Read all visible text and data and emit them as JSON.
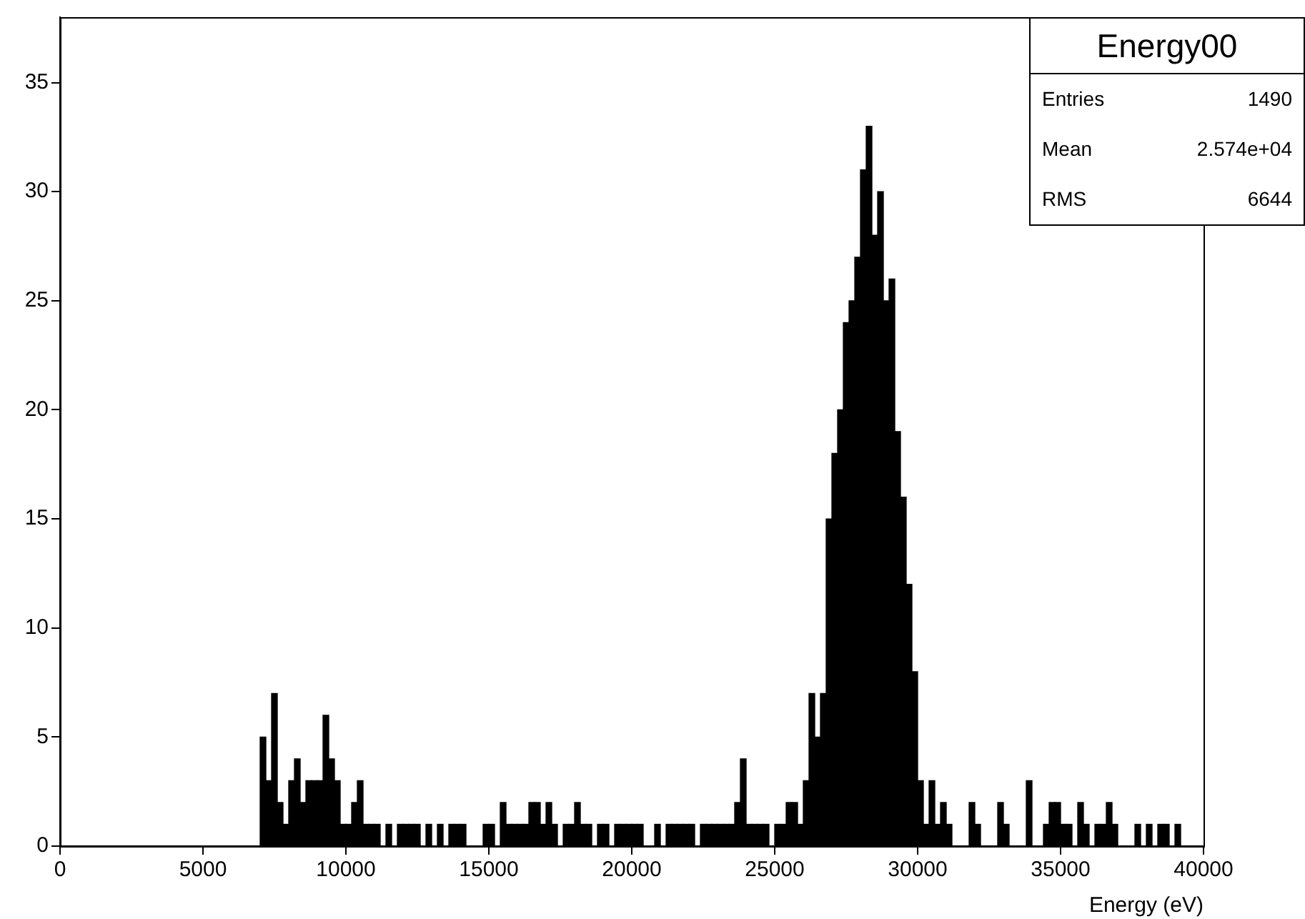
{
  "chart_data": {
    "type": "histogram",
    "title": "Energy00",
    "xlabel": "Energy (eV)",
    "color": "#000000",
    "bins": [
      0,
      200,
      400,
      600,
      800,
      1000,
      1200,
      1400,
      1600,
      1800,
      2000,
      2200,
      2400,
      2600,
      2800,
      3000,
      3200,
      3400,
      3600,
      3800,
      4000,
      4200,
      4400,
      4600,
      4800,
      5000,
      5200,
      5400,
      5600,
      5800,
      6000,
      6200,
      6400,
      6600,
      6800,
      7000,
      7200,
      7400,
      7600,
      7800,
      8000,
      8200,
      8400,
      8600,
      8800,
      9000,
      9200,
      9400,
      9600,
      9800,
      10000,
      10200,
      10400,
      10600,
      10800,
      11000,
      11200,
      11400,
      11600,
      11800,
      12000,
      12200,
      12400,
      12600,
      12800,
      13000,
      13200,
      13400,
      13600,
      13800,
      14000,
      14200,
      14400,
      14600,
      14800,
      15000,
      15200,
      15400,
      15600,
      15800,
      16000,
      16200,
      16400,
      16600,
      16800,
      17000,
      17200,
      17400,
      17600,
      17800,
      18000,
      18200,
      18400,
      18600,
      18800,
      19000,
      19200,
      19400,
      19600,
      19800,
      20000,
      20200,
      20400,
      20600,
      20800,
      21000,
      21200,
      21400,
      21600,
      21800,
      22000,
      22200,
      22400,
      22600,
      22800,
      23000,
      23200,
      23400,
      23600,
      23800,
      24000,
      24200,
      24400,
      24600,
      24800,
      25000,
      25200,
      25400,
      25600,
      25800,
      26000,
      26200,
      26400,
      26600,
      26800,
      27000,
      27200,
      27400,
      27600,
      27800,
      28000,
      28200,
      28400,
      28600,
      28800,
      29000,
      29200,
      29400,
      29600,
      29800,
      30000,
      30200,
      30400,
      30600,
      30800,
      31000,
      31200,
      31400,
      31600,
      31800,
      32000,
      32200,
      32400,
      32600,
      32800,
      33000,
      33200,
      33400,
      33600,
      33800,
      34000,
      34200,
      34400,
      34600,
      34800,
      35000,
      35200,
      35400,
      35600,
      35800,
      36000,
      36200,
      36400,
      36600,
      36800,
      37000,
      37200,
      37400,
      37600,
      37800,
      38000,
      38200,
      38400,
      38600,
      38800,
      39000,
      39200,
      39400,
      39600,
      39800,
      40000
    ],
    "values": [
      0,
      0,
      0,
      0,
      0,
      0,
      0,
      0,
      0,
      0,
      0,
      0,
      0,
      0,
      0,
      0,
      0,
      0,
      0,
      0,
      0,
      0,
      0,
      0,
      0,
      0,
      0,
      0,
      0,
      0,
      0,
      0,
      0,
      0,
      0,
      5,
      3,
      7,
      2,
      1,
      3,
      4,
      2,
      3,
      3,
      3,
      6,
      4,
      3,
      1,
      1,
      2,
      3,
      1,
      1,
      1,
      0,
      1,
      0,
      1,
      1,
      1,
      1,
      0,
      1,
      0,
      1,
      0,
      1,
      1,
      1,
      0,
      0,
      0,
      1,
      1,
      0,
      2,
      1,
      1,
      1,
      1,
      2,
      2,
      1,
      2,
      1,
      0,
      1,
      1,
      2,
      1,
      1,
      0,
      1,
      1,
      0,
      1,
      1,
      1,
      1,
      1,
      0,
      0,
      1,
      0,
      1,
      1,
      1,
      1,
      1,
      0,
      1,
      1,
      1,
      1,
      1,
      1,
      2,
      4,
      1,
      1,
      1,
      1,
      0,
      1,
      1,
      2,
      2,
      1,
      3,
      7,
      5,
      7,
      15,
      18,
      20,
      24,
      25,
      27,
      31,
      33,
      28,
      30,
      25,
      26,
      19,
      16,
      12,
      8,
      3,
      1,
      3,
      1,
      2,
      1,
      0,
      0,
      0,
      2,
      1,
      0,
      0,
      0,
      2,
      1,
      0,
      0,
      0,
      3,
      0,
      0,
      1,
      2,
      2,
      1,
      1,
      0,
      2,
      1,
      0,
      1,
      1,
      2,
      1,
      0,
      0,
      0,
      1,
      0,
      1,
      0,
      1,
      1,
      0,
      1,
      0,
      0,
      0,
      0
    ],
    "xlim": [
      0,
      40000
    ],
    "xticks": [
      0,
      5000,
      10000,
      15000,
      20000,
      25000,
      30000,
      35000,
      40000
    ],
    "ylim": [
      0,
      38
    ],
    "yticks": [
      0,
      5,
      10,
      15,
      20,
      25,
      30,
      35
    ],
    "annotations": [
      "Entries",
      "1490",
      "Mean",
      "2.574e+04",
      "RMS",
      "6644"
    ]
  }
}
